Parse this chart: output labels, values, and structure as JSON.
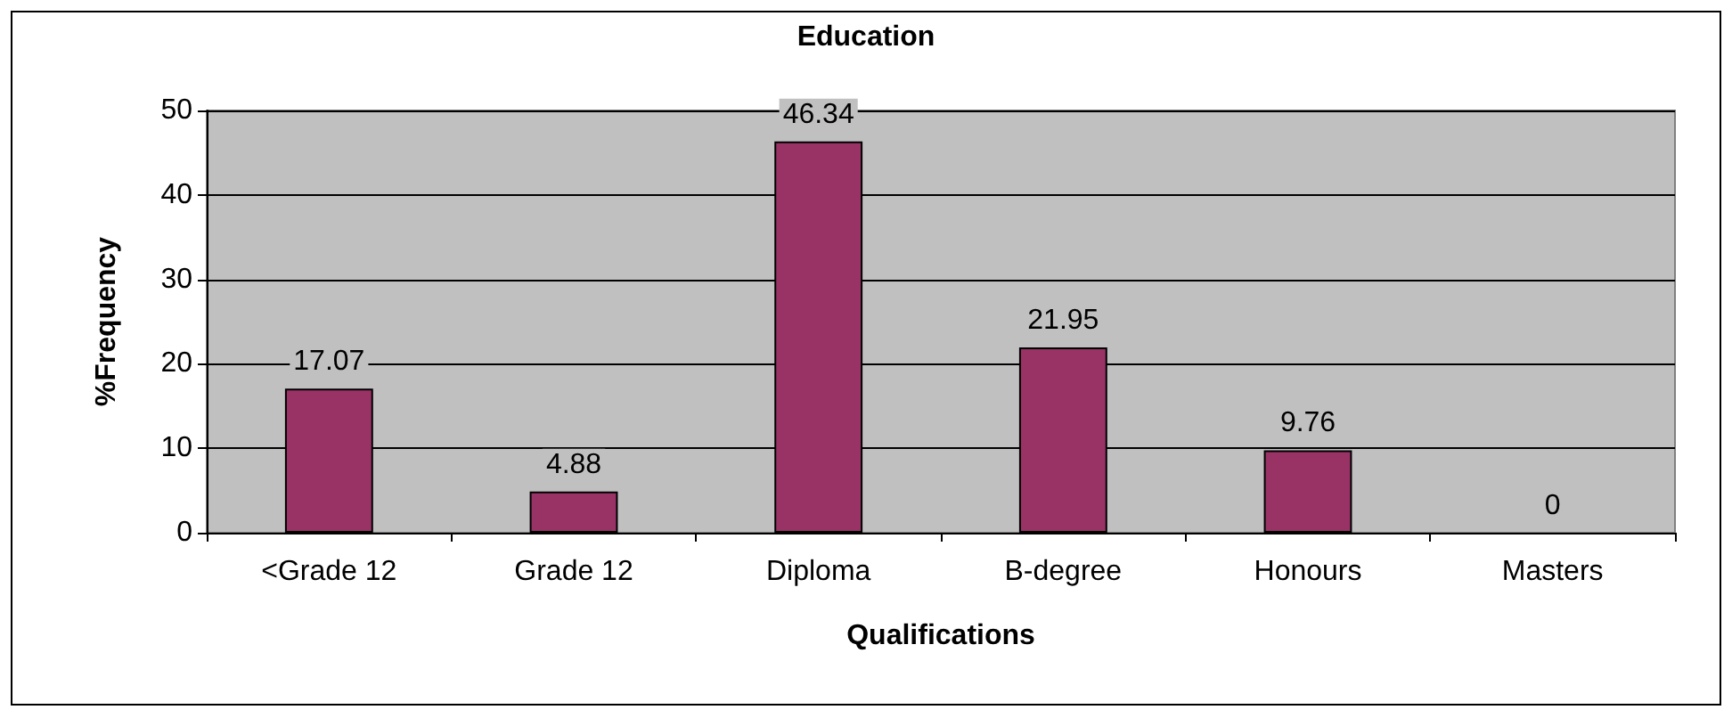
{
  "chart_data": {
    "type": "bar",
    "title": "Education",
    "xlabel": "Qualifications",
    "ylabel": "%Frequency",
    "categories": [
      "<Grade 12",
      "Grade 12",
      "Diploma",
      "B-degree",
      "Honours",
      "Masters"
    ],
    "values": [
      17.07,
      4.88,
      46.34,
      21.95,
      9.76,
      0
    ],
    "color": "#993366",
    "ylim": [
      0,
      50
    ],
    "yticks": [
      0,
      10,
      20,
      30,
      40,
      50
    ],
    "grid": "y",
    "data_labels": true
  }
}
